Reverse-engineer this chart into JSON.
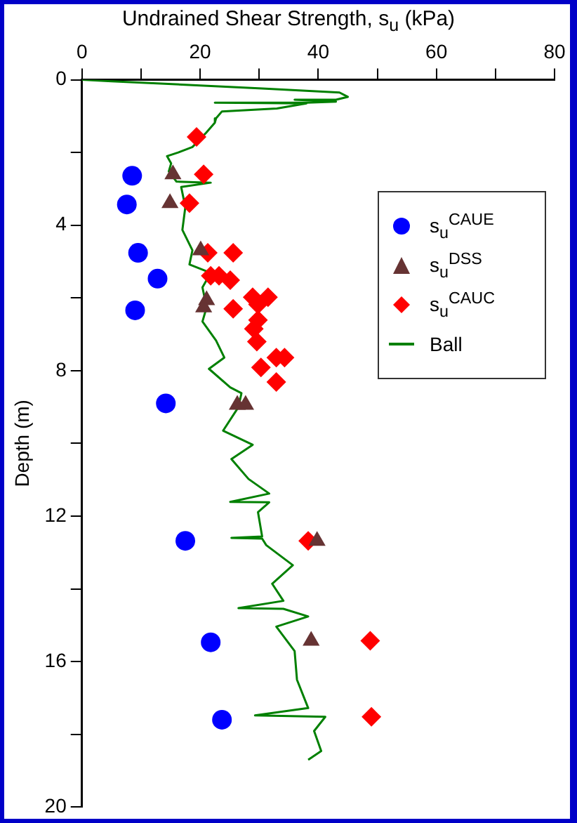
{
  "chart_data": {
    "type": "scatter",
    "xlabel": "Undrained Shear Strength, s$_{u}$ (kPa)",
    "ylabel": "Depth (m)",
    "xlim": [
      0,
      80
    ],
    "xticks": [
      0,
      {
        "value": 10,
        "label": null
      },
      20,
      {
        "value": 30,
        "label": null
      },
      40,
      {
        "value": 50,
        "label": null
      },
      60,
      {
        "value": 70,
        "label": null
      },
      80
    ],
    "ylim": [
      20,
      0
    ],
    "yticks": [
      0,
      {
        "value": 2,
        "label": null
      },
      4,
      {
        "value": 6,
        "label": null
      },
      8,
      {
        "value": 10,
        "label": null
      },
      12,
      {
        "value": 14,
        "label": null
      },
      16,
      {
        "value": 18,
        "label": null
      },
      20
    ],
    "grid": false,
    "legend": "top right",
    "series": [
      {
        "name": "s$_{u}$$^{CAUE}$",
        "type": "scatter",
        "marker": "circle",
        "color": "#0000ff",
        "x": [
          8.5,
          7.6,
          9.5,
          12.8,
          9.0,
          14.2,
          17.5,
          21.8,
          23.7
        ],
        "values": [
          2.64,
          3.43,
          4.76,
          5.47,
          6.34,
          8.9,
          12.68,
          15.47,
          17.6
        ]
      },
      {
        "name": "s$_{u}$$^{DSS}$",
        "type": "scatter",
        "marker": "triangle",
        "color": "#663333",
        "x": [
          15.4,
          14.9,
          20.1,
          21.1,
          20.6,
          26.3,
          27.7,
          39.8,
          38.8
        ],
        "values": [
          2.6,
          3.39,
          4.69,
          6.06,
          6.26,
          8.94,
          8.94,
          12.68,
          15.43
        ]
      },
      {
        "name": "s$_{u}$$^{CAUC}$",
        "type": "scatter",
        "marker": "diamond",
        "color": "#ff0000",
        "x": [
          19.4,
          20.6,
          18.2,
          21.3,
          25.6,
          21.8,
          23.2,
          25.1,
          25.6,
          28.9,
          31.5,
          29.8,
          29.8,
          29.1,
          29.6,
          30.3,
          32.9,
          34.3,
          32.9,
          38.3,
          48.8,
          49.0
        ],
        "values": [
          1.57,
          2.6,
          3.39,
          4.76,
          4.76,
          5.39,
          5.39,
          5.51,
          6.3,
          5.98,
          5.98,
          6.18,
          6.61,
          6.85,
          7.2,
          7.91,
          7.64,
          7.64,
          8.31,
          12.68,
          15.43,
          17.52
        ]
      },
      {
        "name": "Ball",
        "type": "line",
        "marker": "none",
        "color": "#008000",
        "x": [
          0,
          5,
          30.5,
          43.6,
          45,
          43,
          36,
          43,
          38,
          22.5,
          38,
          33,
          23.7,
          22.7,
          22.5,
          21,
          18.7,
          16.3,
          14.4,
          15.1,
          14.7,
          16,
          21.8,
          16.8,
          17.5,
          17,
          18.7,
          18.2,
          21.8,
          20.4,
          21.1,
          20.4,
          22.7,
          24.1,
          21.5,
          25.1,
          27,
          26.5,
          23.9,
          28.9,
          25.3,
          28.2,
          31.7,
          25.1,
          31.7,
          29.8,
          30.5,
          25.3,
          30.5,
          31.2,
          35.7,
          32.2,
          34.1,
          26.5,
          34.1,
          38.3,
          32.9,
          36,
          36.4,
          38.3,
          29.3,
          41.2,
          39.3,
          40.5,
          38.3
        ],
        "values": [
          0,
          0.04,
          0.24,
          0.35,
          0.47,
          0.55,
          0.55,
          0.6,
          0.63,
          0.63,
          0.65,
          0.79,
          0.87,
          1.06,
          1.18,
          1.46,
          1.85,
          2.0,
          2.1,
          2.3,
          2.52,
          2.8,
          2.83,
          2.95,
          3.5,
          4.13,
          4.69,
          5.08,
          5.31,
          5.71,
          6.26,
          6.65,
          7.17,
          7.64,
          7.95,
          8.46,
          8.62,
          9.0,
          9.65,
          10.04,
          10.43,
          10.98,
          11.38,
          11.61,
          11.62,
          11.89,
          12.56,
          12.6,
          12.62,
          12.8,
          13.35,
          13.86,
          14.33,
          14.53,
          14.55,
          14.76,
          15.04,
          15.71,
          16.5,
          17.28,
          17.48,
          17.52,
          17.91,
          18.46,
          18.7
        ]
      }
    ]
  }
}
